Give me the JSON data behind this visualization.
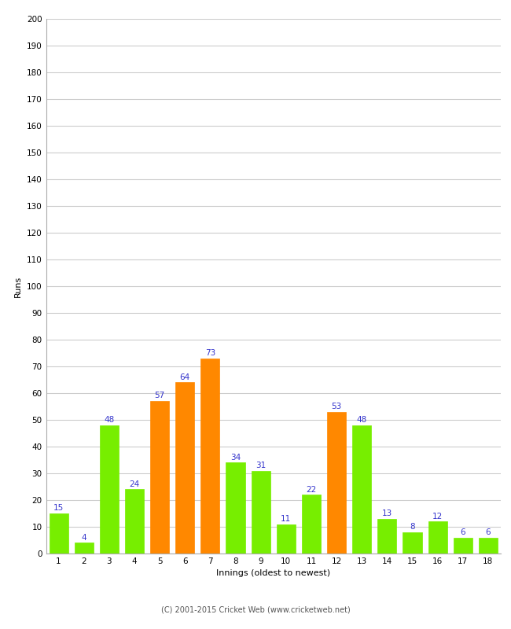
{
  "title": "",
  "xlabel": "Innings (oldest to newest)",
  "ylabel": "Runs",
  "innings": [
    1,
    2,
    3,
    4,
    5,
    6,
    7,
    8,
    9,
    10,
    11,
    12,
    13,
    14,
    15,
    16,
    17,
    18
  ],
  "values": [
    15,
    4,
    48,
    24,
    57,
    64,
    73,
    34,
    31,
    11,
    22,
    53,
    48,
    13,
    8,
    12,
    6,
    6
  ],
  "colors": [
    "#77ee00",
    "#77ee00",
    "#77ee00",
    "#77ee00",
    "#ff8800",
    "#ff8800",
    "#ff8800",
    "#77ee00",
    "#77ee00",
    "#77ee00",
    "#77ee00",
    "#ff8800",
    "#77ee00",
    "#77ee00",
    "#77ee00",
    "#77ee00",
    "#77ee00",
    "#77ee00"
  ],
  "ylim": [
    0,
    200
  ],
  "ytick_step": 10,
  "label_color": "#3333cc",
  "label_fontsize": 7.5,
  "axis_label_fontsize": 8,
  "tick_fontsize": 7.5,
  "background_color": "#ffffff",
  "grid_color": "#cccccc",
  "footer": "(C) 2001-2015 Cricket Web (www.cricketweb.net)"
}
